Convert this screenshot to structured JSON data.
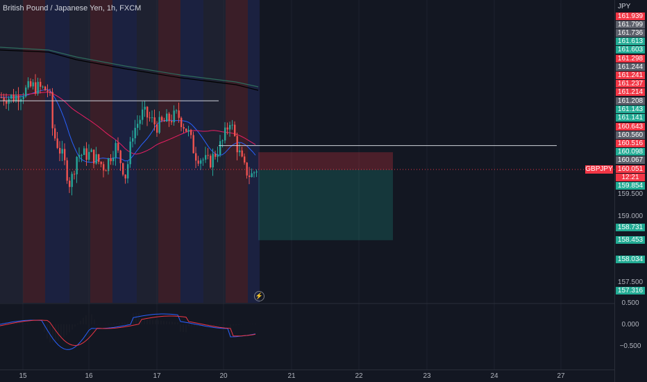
{
  "header": {
    "title": "British Pound / Japanese Yen, 1h, FXCM"
  },
  "symbol_tag": "GBPJPY",
  "price_axis": {
    "currency": "JPY",
    "tags": [
      {
        "text": "161.939",
        "color": "#f23645"
      },
      {
        "text": "161.799",
        "color": "#5d606b"
      },
      {
        "text": "161.736",
        "color": "#5d606b"
      },
      {
        "text": "161.613",
        "color": "#22ab94"
      },
      {
        "text": "161.603",
        "color": "#22ab94"
      },
      {
        "text": "161.298",
        "color": "#f23645"
      },
      {
        "text": "161.244",
        "color": "#5d606b"
      },
      {
        "text": "161.241",
        "color": "#f23645"
      },
      {
        "text": "161.237",
        "color": "#f23645"
      },
      {
        "text": "161.214",
        "color": "#f23645"
      },
      {
        "text": "161.208",
        "color": "#5d606b"
      },
      {
        "text": "161.143",
        "color": "#22ab94"
      },
      {
        "text": "161.141",
        "color": "#22ab94"
      },
      {
        "text": "160.643",
        "color": "#f23645"
      },
      {
        "text": "160.560",
        "color": "#5d606b"
      },
      {
        "text": "160.516",
        "color": "#f23645"
      },
      {
        "text": "160.098",
        "color": "#22ab94"
      },
      {
        "text": "160.067",
        "color": "#5d606b"
      },
      {
        "text": "160.051",
        "color": "#f23645"
      },
      {
        "text": "12:21",
        "color": "#f23645"
      },
      {
        "text": "159.854",
        "color": "#22ab94"
      }
    ],
    "lower_tags": [
      {
        "text": "158.731",
        "color": "#22ab94"
      },
      {
        "text": "158.453",
        "color": "#22ab94"
      },
      {
        "text": "158.034",
        "color": "#22ab94"
      },
      {
        "text": "157.316",
        "color": "#22ab94"
      }
    ],
    "plain_labels": [
      "159.500",
      "159.000",
      "157.500"
    ],
    "osc_labels": [
      "0.500",
      "0.000",
      "−0.500"
    ]
  },
  "time_axis": {
    "labels": [
      "15",
      "16",
      "17",
      "20",
      "21",
      "22",
      "23",
      "24",
      "27"
    ]
  },
  "chart_data": {
    "type": "candlestick",
    "symbol": "GBPJPY",
    "interval": "1h",
    "ylim": [
      157.2,
      162.0
    ],
    "series_close_estimates": [
      161.7,
      160.6,
      159.9,
      161.2,
      161.2,
      160.9,
      160.2,
      160.05
    ],
    "position": {
      "type": "short",
      "entry": 160.05,
      "stop": 160.45,
      "target": 158.45
    },
    "horizontal_lines": [
      161.62,
      160.6
    ],
    "colors": {
      "up": "#26a69a",
      "down": "#ef5350",
      "background": "#131722"
    }
  }
}
